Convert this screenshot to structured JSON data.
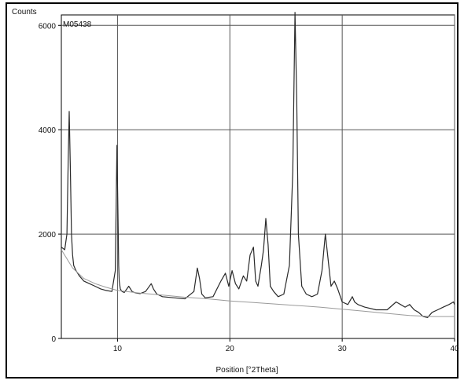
{
  "chart_data": {
    "type": "line",
    "ylabel": "Counts",
    "xlabel": "Position [°2Theta]",
    "sample_label": "M05438",
    "xlim": [
      5,
      40
    ],
    "ylim": [
      0,
      6200
    ],
    "x_ticks": [
      10,
      20,
      30,
      40
    ],
    "x_tick_labels": [
      "10",
      "20",
      "30",
      "40"
    ],
    "y_ticks": [
      0,
      2000,
      4000,
      6000
    ],
    "y_tick_labels": [
      "0",
      "2000",
      "4000",
      "6000"
    ],
    "grid": true,
    "colors": {
      "pattern": "#2a2a2a",
      "background_curve": "#9a9a9a",
      "grid": "#555555"
    },
    "series": [
      {
        "role": "pattern",
        "x": [
          5.0,
          5.3,
          5.5,
          5.6,
          5.7,
          5.8,
          5.9,
          6.0,
          6.1,
          6.3,
          6.6,
          7.0,
          7.5,
          8.0,
          8.5,
          9.0,
          9.5,
          9.8,
          9.95,
          10.05,
          10.1,
          10.15,
          10.25,
          10.4,
          10.6,
          11.0,
          11.3,
          11.5,
          11.7,
          12.0,
          12.5,
          13.0,
          13.2,
          13.5,
          14.0,
          15.0,
          16.0,
          16.8,
          17.1,
          17.3,
          17.5,
          17.8,
          18.5,
          19.2,
          19.6,
          19.9,
          20.2,
          20.5,
          20.8,
          21.2,
          21.5,
          21.8,
          22.1,
          22.3,
          22.5,
          22.8,
          23.0,
          23.2,
          23.4,
          23.6,
          23.9,
          24.3,
          24.8,
          25.3,
          25.6,
          25.8,
          25.95,
          26.1,
          26.4,
          26.8,
          27.3,
          27.8,
          28.2,
          28.5,
          28.7,
          29.0,
          29.3,
          29.6,
          30.0,
          30.5,
          30.9,
          31.1,
          31.4,
          32.0,
          33.0,
          34.0,
          34.8,
          35.2,
          35.6,
          36.0,
          36.4,
          36.8,
          37.2,
          37.6,
          38.0,
          38.5,
          39.0,
          39.5,
          39.9,
          40.0
        ],
        "y": [
          1750,
          1700,
          2000,
          3300,
          4350,
          3300,
          2000,
          1600,
          1400,
          1300,
          1200,
          1100,
          1050,
          1000,
          950,
          920,
          900,
          1300,
          3700,
          2300,
          1400,
          1100,
          950,
          900,
          880,
          1000,
          900,
          880,
          870,
          860,
          900,
          1050,
          950,
          850,
          800,
          780,
          760,
          900,
          1350,
          1150,
          850,
          780,
          800,
          1100,
          1250,
          1000,
          1300,
          1050,
          950,
          1200,
          1100,
          1600,
          1750,
          1100,
          1000,
          1400,
          1700,
          2300,
          1800,
          1000,
          900,
          800,
          850,
          1400,
          3200,
          6250,
          4600,
          2000,
          1000,
          850,
          800,
          850,
          1300,
          2000,
          1600,
          1000,
          1100,
          950,
          700,
          650,
          800,
          700,
          650,
          600,
          550,
          550,
          700,
          650,
          600,
          650,
          550,
          500,
          420,
          400,
          500,
          550,
          600,
          650,
          700,
          650
        ]
      },
      {
        "role": "background",
        "x": [
          5.0,
          6.0,
          7.0,
          8.0,
          9.0,
          10.0,
          12.0,
          14.0,
          16.0,
          18.0,
          20.0,
          22.0,
          24.0,
          26.0,
          28.0,
          30.0,
          32.0,
          34.0,
          36.0,
          38.0,
          40.0
        ],
        "y": [
          1700,
          1350,
          1150,
          1050,
          980,
          920,
          870,
          830,
          790,
          760,
          720,
          690,
          660,
          630,
          600,
          560,
          520,
          480,
          440,
          420,
          420
        ]
      }
    ]
  }
}
